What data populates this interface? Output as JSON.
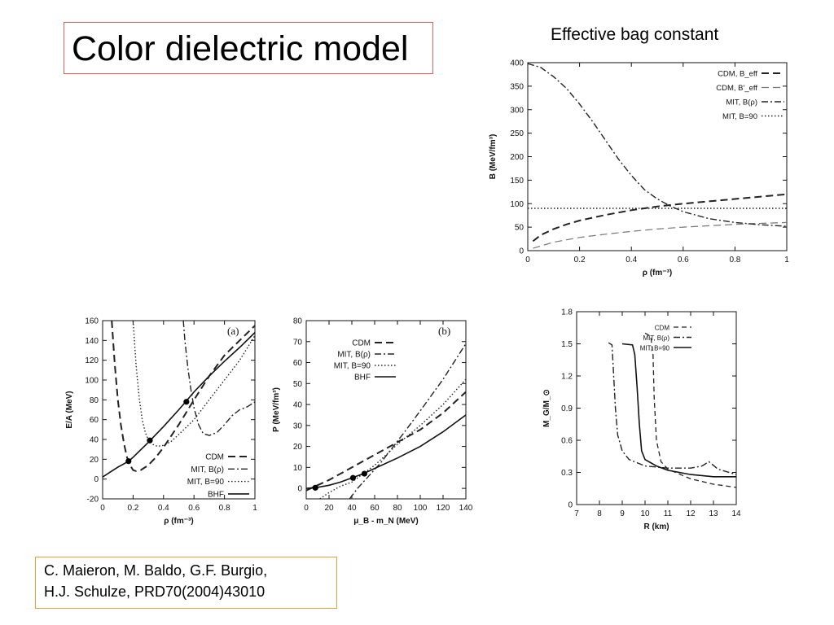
{
  "slide": {
    "title": "Color dielectric model",
    "figure_caption": "Effective bag constant",
    "citation_line1": "C. Maieron, M. Baldo, G.F. Burgio,",
    "citation_line2": "H.J. Schulze, PRD70(2004)43010"
  },
  "chart_data": [
    {
      "id": "B",
      "type": "line",
      "title": "",
      "xlabel": "ρ (fm⁻³)",
      "ylabel": "B (MeV/fm³)",
      "xlim": [
        0,
        1
      ],
      "ylim": [
        0,
        400
      ],
      "xticks": [
        "0",
        "0.2",
        "0.4",
        "0.6",
        "0.8",
        "1"
      ],
      "yticks": [
        "0",
        "50",
        "100",
        "150",
        "200",
        "250",
        "300",
        "350",
        "400"
      ],
      "legend_position": "top-right",
      "series": [
        {
          "name": "CDM, B_eff",
          "style": "long-dash",
          "x": [
            0.02,
            0.05,
            0.1,
            0.15,
            0.2,
            0.3,
            0.4,
            0.5,
            0.6,
            0.7,
            0.8,
            0.9,
            1.0
          ],
          "y": [
            20,
            33,
            46,
            56,
            64,
            76,
            86,
            94,
            100,
            105,
            110,
            115,
            120
          ]
        },
        {
          "name": "CDM, B'_eff",
          "style": "dash-light",
          "x": [
            0.02,
            0.1,
            0.2,
            0.3,
            0.4,
            0.5,
            0.6,
            0.7,
            0.8,
            0.9,
            1.0
          ],
          "y": [
            5,
            18,
            28,
            35,
            41,
            46,
            50,
            53,
            56,
            58,
            60
          ]
        },
        {
          "name": "MIT, B(ρ)",
          "style": "dash-dot",
          "x": [
            0.0,
            0.05,
            0.1,
            0.15,
            0.2,
            0.25,
            0.3,
            0.35,
            0.4,
            0.45,
            0.5,
            0.55,
            0.6,
            0.7,
            0.8,
            0.9,
            1.0
          ],
          "y": [
            398,
            390,
            370,
            345,
            312,
            275,
            235,
            195,
            160,
            130,
            110,
            95,
            83,
            68,
            60,
            55,
            52
          ]
        },
        {
          "name": "MIT, B=90",
          "style": "dotted",
          "x": [
            0,
            1
          ],
          "y": [
            90,
            90
          ]
        }
      ]
    },
    {
      "id": "a",
      "type": "line",
      "panel_label": "(a)",
      "xlabel": "ρ (fm⁻³)",
      "ylabel": "E/A (MeV)",
      "xlim": [
        0,
        1
      ],
      "ylim": [
        -20,
        160
      ],
      "xticks": [
        "0",
        "0.2",
        "0.4",
        "0.6",
        "0.8",
        "1"
      ],
      "yticks": [
        "-20",
        "0",
        "20",
        "40",
        "60",
        "80",
        "100",
        "120",
        "140",
        "160"
      ],
      "legend_position": "bottom-right",
      "series": [
        {
          "name": "CDM",
          "style": "long-dash",
          "x": [
            0.06,
            0.08,
            0.1,
            0.12,
            0.14,
            0.16,
            0.18,
            0.2,
            0.22,
            0.25,
            0.3,
            0.35,
            0.4,
            0.5,
            0.6,
            0.7,
            0.8,
            0.9,
            1.0
          ],
          "y": [
            160,
            115,
            80,
            55,
            36,
            22,
            14,
            9,
            8,
            9,
            14,
            22,
            32,
            55,
            80,
            104,
            125,
            140,
            155
          ]
        },
        {
          "name": "MIT, B(ρ)",
          "style": "dash-dot",
          "x": [
            0.53,
            0.54,
            0.56,
            0.58,
            0.6,
            0.63,
            0.66,
            0.7,
            0.75,
            0.8,
            0.85,
            0.9,
            0.95,
            1.0
          ],
          "y": [
            160,
            140,
            112,
            90,
            72,
            55,
            46,
            44,
            47,
            55,
            64,
            70,
            73,
            78
          ]
        },
        {
          "name": "MIT, B=90",
          "style": "dotted",
          "x": [
            0.2,
            0.22,
            0.24,
            0.26,
            0.28,
            0.3,
            0.33,
            0.36,
            0.4,
            0.45,
            0.5,
            0.6,
            0.7,
            0.8,
            0.9,
            1.0
          ],
          "y": [
            160,
            115,
            82,
            60,
            47,
            40,
            35,
            33,
            34,
            38,
            45,
            60,
            80,
            100,
            120,
            145
          ]
        },
        {
          "name": "BHF",
          "style": "solid",
          "x": [
            0.0,
            0.05,
            0.1,
            0.17,
            0.2,
            0.3,
            0.4,
            0.5,
            0.55,
            0.6,
            0.7,
            0.8,
            0.9,
            1.0
          ],
          "y": [
            2,
            7,
            12,
            18,
            22,
            37,
            53,
            70,
            79,
            88,
            104,
            119,
            133,
            148
          ]
        }
      ],
      "markers": {
        "x": [
          0.17,
          0.31,
          0.55
        ],
        "y": [
          18,
          39,
          78
        ]
      }
    },
    {
      "id": "b",
      "type": "line",
      "panel_label": "(b)",
      "xlabel": "μ_B - m_N (MeV)",
      "ylabel": "P (MeV/fm³)",
      "xlim": [
        0,
        140
      ],
      "ylim": [
        -5,
        80
      ],
      "xticks": [
        "0",
        "20",
        "40",
        "60",
        "80",
        "100",
        "120",
        "140"
      ],
      "yticks": [
        "0",
        "10",
        "20",
        "30",
        "40",
        "50",
        "60",
        "70",
        "80"
      ],
      "legend_position": "top-left",
      "series": [
        {
          "name": "CDM",
          "style": "long-dash",
          "x": [
            0,
            20,
            40,
            60,
            80,
            100,
            120,
            140
          ],
          "y": [
            -1,
            4,
            10,
            16,
            22,
            28,
            36,
            46
          ]
        },
        {
          "name": "MIT, B(ρ)",
          "style": "dash-dot",
          "x": [
            38,
            45,
            55,
            65,
            75,
            85,
            100,
            120,
            140
          ],
          "y": [
            -5,
            0,
            6,
            12,
            19,
            26,
            37,
            52,
            69
          ]
        },
        {
          "name": "MIT, B=90",
          "style": "dotted",
          "x": [
            12,
            20,
            30,
            40,
            50,
            60,
            70,
            80,
            100,
            120,
            140
          ],
          "y": [
            -5,
            -2,
            1,
            3,
            7,
            11,
            16,
            21,
            30,
            40,
            52
          ]
        },
        {
          "name": "BHF",
          "style": "solid",
          "x": [
            0,
            10,
            20,
            30,
            40,
            50,
            60,
            80,
            100,
            120,
            140
          ],
          "y": [
            0,
            0.5,
            1.5,
            3,
            5,
            7,
            9.5,
            14.5,
            20,
            27,
            35
          ]
        }
      ],
      "markers": {
        "x": [
          8,
          41,
          51
        ],
        "y": [
          0.3,
          5,
          7
        ]
      }
    },
    {
      "id": "MR",
      "type": "line",
      "xlabel": "R (km)",
      "ylabel": "M_G/M_⊙",
      "xlim": [
        7,
        14
      ],
      "ylim": [
        0,
        1.8
      ],
      "xticks": [
        "7",
        "8",
        "9",
        "10",
        "11",
        "12",
        "13",
        "14"
      ],
      "yticks": [
        "0",
        "0.3",
        "0.6",
        "0.9",
        "1.2",
        "1.5",
        "1.8"
      ],
      "legend_position": "top-right",
      "series": [
        {
          "name": "CDM",
          "style": "dash",
          "x": [
            10.0,
            10.25,
            10.35,
            10.4,
            10.5,
            10.7,
            11.0,
            12.0,
            13.0,
            14.0
          ],
          "y": [
            1.6,
            1.57,
            1.4,
            1.0,
            0.6,
            0.4,
            0.33,
            0.24,
            0.19,
            0.16
          ]
        },
        {
          "name": "MIT, B(ρ)",
          "style": "dash-dot",
          "x": [
            8.4,
            8.55,
            8.6,
            8.7,
            8.8,
            9.0,
            9.3,
            10.0,
            11.0,
            12.0,
            12.5,
            12.8,
            13.2,
            14.0
          ],
          "y": [
            1.51,
            1.49,
            1.3,
            0.9,
            0.65,
            0.5,
            0.42,
            0.36,
            0.34,
            0.34,
            0.36,
            0.4,
            0.33,
            0.28
          ]
        },
        {
          "name": "MIT, B=90",
          "style": "solid",
          "x": [
            9.0,
            9.45,
            9.55,
            9.65,
            9.75,
            9.85,
            10.0,
            10.5,
            11.0,
            12.0,
            13.0,
            14.0
          ],
          "y": [
            1.5,
            1.49,
            1.4,
            1.1,
            0.75,
            0.5,
            0.42,
            0.36,
            0.32,
            0.28,
            0.26,
            0.26
          ]
        }
      ]
    }
  ]
}
